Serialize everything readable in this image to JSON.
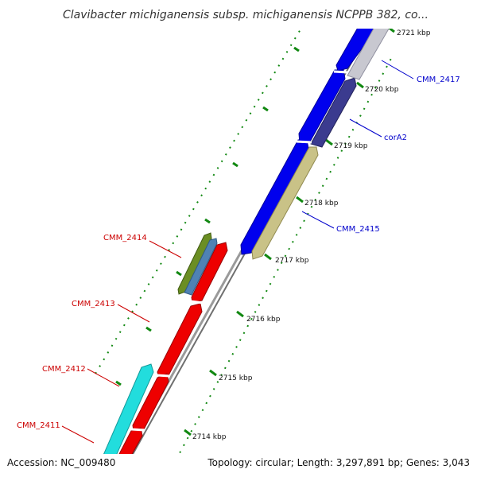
{
  "map": {
    "title": "Clavibacter michiganensis subsp. michiganensis NCPPB 382, co...",
    "accession": "Accession: NC_009480",
    "summary": "Topology: circular; Length: 3,297,891 bp; Genes: 3,043"
  },
  "ticks": [
    {
      "label": "2714 kbp"
    },
    {
      "label": "2715 kbp"
    },
    {
      "label": "2716 kbp"
    },
    {
      "label": "2717 kbp"
    },
    {
      "label": "2718 kbp"
    },
    {
      "label": "2719 kbp"
    },
    {
      "label": "2720 kbp"
    },
    {
      "label": "2721 kbp"
    }
  ],
  "gene_labels": [
    {
      "name": "CMM_2417",
      "color": "#0000cc"
    },
    {
      "name": "corA2",
      "color": "#0000cc"
    },
    {
      "name": "CMM_2415",
      "color": "#0000cc"
    },
    {
      "name": "CMM_2414",
      "color": "#cc0000"
    },
    {
      "name": "CMM_2413",
      "color": "#cc0000"
    },
    {
      "name": "CMM_2412",
      "color": "#cc0000"
    },
    {
      "name": "CMM_2411",
      "color": "#cc0000"
    }
  ],
  "colors": {
    "forward_gene": "#0000ee",
    "reverse_gene": "#ee0000",
    "corA2_gene": "#3b3b8f",
    "CMM_2417_gene": "#c8c8d0",
    "CMM_2415_gene": "#c9c287",
    "cyan_gene": "#22dddd",
    "olive_gene": "#6b8e23",
    "steel_gene": "#4f82b4",
    "backbone": "#909090",
    "tick_marks": "#118811"
  }
}
